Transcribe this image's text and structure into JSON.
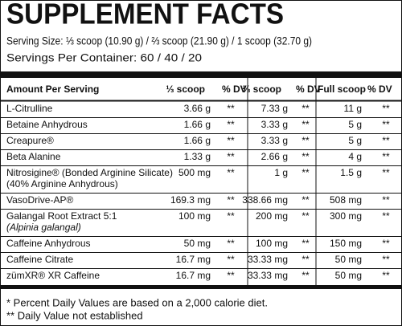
{
  "header": {
    "title": "SUPPLEMENT FACTS",
    "serving_size": "Serving Size: ⅓ scoop (10.90 g) / ⅔ scoop (21.90 g) / 1 scoop (32.70 g)",
    "servings_per_container": "Servings Per Container: 60 / 40 / 20"
  },
  "table": {
    "columns": [
      "Amount Per Serving",
      "⅓ scoop",
      "% DV",
      "⅔ scoop",
      "% DV",
      "Full scoop",
      "% DV"
    ],
    "rows": [
      {
        "name": [
          "L-Citrulline"
        ],
        "cells": [
          "3.66 g",
          "**",
          "7.33 g",
          "**",
          "11 g",
          "**"
        ]
      },
      {
        "name": [
          "Betaine Anhydrous"
        ],
        "cells": [
          "1.66 g",
          "**",
          "3.33 g",
          "**",
          "5 g",
          "**"
        ]
      },
      {
        "name": [
          "Creapure®"
        ],
        "cells": [
          "1.66 g",
          "**",
          "3.33 g",
          "**",
          "5 g",
          "**"
        ]
      },
      {
        "name": [
          "Beta Alanine"
        ],
        "cells": [
          "1.33 g",
          "**",
          "2.66 g",
          "**",
          "4 g",
          "**"
        ]
      },
      {
        "name": [
          "Nitrosigine® (Bonded Arginine Silicate)",
          "(40% Arginine Anhydrous)"
        ],
        "cells": [
          "500 mg",
          "**",
          "1 g",
          "**",
          "1.5 g",
          "**"
        ]
      },
      {
        "name": [
          "VasoDrive-AP®"
        ],
        "cells": [
          "169.3 mg",
          "**",
          "338.66 mg",
          "**",
          "508 mg",
          "**"
        ]
      },
      {
        "name": [
          "Galangal Root Extract 5:1",
          "(Alpinia galangal)"
        ],
        "cells": [
          "100 mg",
          "**",
          "200 mg",
          "**",
          "300 mg",
          "**"
        ]
      },
      {
        "name": [
          "Caffeine Anhydrous"
        ],
        "cells": [
          "50 mg",
          "**",
          "100 mg",
          "**",
          "150 mg",
          "**"
        ]
      },
      {
        "name": [
          "Caffeine Citrate"
        ],
        "cells": [
          "16.7 mg",
          "**",
          "33.33 mg",
          "**",
          "50 mg",
          "**"
        ]
      },
      {
        "name": [
          "zümXR® XR Caffeine"
        ],
        "cells": [
          "16.7 mg",
          "**",
          "33.33 mg",
          "**",
          "50 mg",
          "**"
        ]
      }
    ]
  },
  "footnotes": [
    "* Percent Daily Values are based on a 2,000 calorie diet.",
    "** Daily Value not established"
  ]
}
